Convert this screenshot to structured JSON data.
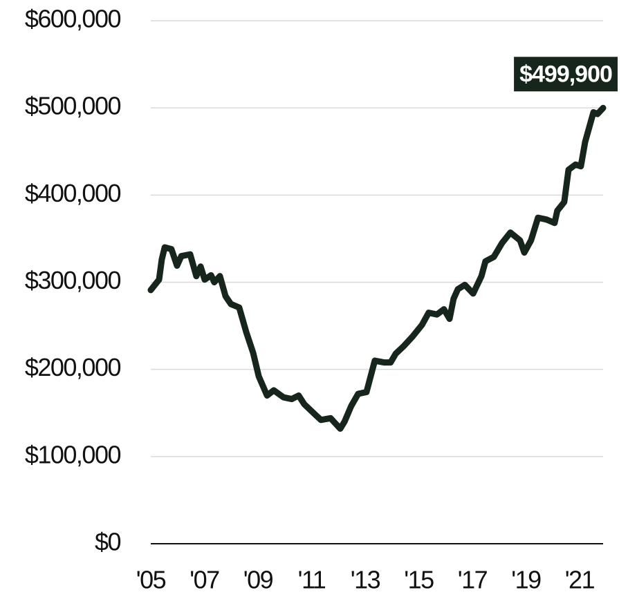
{
  "chart_data": {
    "type": "line",
    "annotation": "$499,900",
    "x": [
      2005.0,
      2005.31,
      2005.41,
      2005.52,
      2005.77,
      2005.98,
      2006.14,
      2006.47,
      2006.7,
      2006.86,
      2007.01,
      2007.25,
      2007.37,
      2007.58,
      2007.79,
      2007.99,
      2008.3,
      2008.56,
      2008.82,
      2009.03,
      2009.34,
      2009.59,
      2009.95,
      2010.26,
      2010.52,
      2010.73,
      2011.14,
      2011.35,
      2011.71,
      2011.86,
      2012.07,
      2012.23,
      2012.48,
      2012.74,
      2013.05,
      2013.36,
      2013.7,
      2013.95,
      2014.14,
      2014.45,
      2014.75,
      2015.12,
      2015.37,
      2015.68,
      2015.94,
      2016.15,
      2016.3,
      2016.46,
      2016.72,
      2017.03,
      2017.34,
      2017.49,
      2017.8,
      2018.11,
      2018.42,
      2018.78,
      2018.94,
      2019.19,
      2019.45,
      2019.76,
      2020.07,
      2020.17,
      2020.43,
      2020.59,
      2020.85,
      2021.05,
      2021.21,
      2021.52,
      2021.67,
      2021.88
    ],
    "series": [
      {
        "color": "#17261c",
        "values": [
          291000,
          303000,
          326000,
          340000,
          338000,
          319000,
          330000,
          332000,
          307000,
          318000,
          303000,
          308000,
          300000,
          307000,
          284000,
          275000,
          271000,
          243000,
          219000,
          192000,
          170000,
          176000,
          168000,
          166000,
          170000,
          160000,
          148000,
          142000,
          144000,
          139000,
          132000,
          140000,
          158000,
          172000,
          174000,
          210000,
          208000,
          208000,
          218000,
          227000,
          237000,
          251000,
          265000,
          263000,
          269000,
          258000,
          281000,
          292000,
          297000,
          287000,
          307000,
          324000,
          329000,
          345000,
          357000,
          348000,
          334000,
          348000,
          374000,
          372000,
          368000,
          382000,
          392000,
          429000,
          435000,
          433000,
          461000,
          495000,
          493000,
          499900
        ]
      }
    ],
    "xlim": [
      2005,
      2021.88
    ],
    "xticks": [
      {
        "value": 2005,
        "label": "'05"
      },
      {
        "value": 2007,
        "label": "'07"
      },
      {
        "value": 2009,
        "label": "'09"
      },
      {
        "value": 2011,
        "label": "'11"
      },
      {
        "value": 2013,
        "label": "'13"
      },
      {
        "value": 2015,
        "label": "'15"
      },
      {
        "value": 2017,
        "label": "'17"
      },
      {
        "value": 2019,
        "label": "'19"
      },
      {
        "value": 2021,
        "label": "'21"
      }
    ],
    "ylim": [
      0,
      600000
    ],
    "yticks": [
      {
        "value": 0,
        "label": "$0"
      },
      {
        "value": 100000,
        "label": "$100,000"
      },
      {
        "value": 200000,
        "label": "$200,000"
      },
      {
        "value": 300000,
        "label": "$300,000"
      },
      {
        "value": 400000,
        "label": "$400,000"
      },
      {
        "value": 500000,
        "label": "$500,000"
      },
      {
        "value": 600000,
        "label": "$600,000"
      }
    ],
    "grid": true
  }
}
